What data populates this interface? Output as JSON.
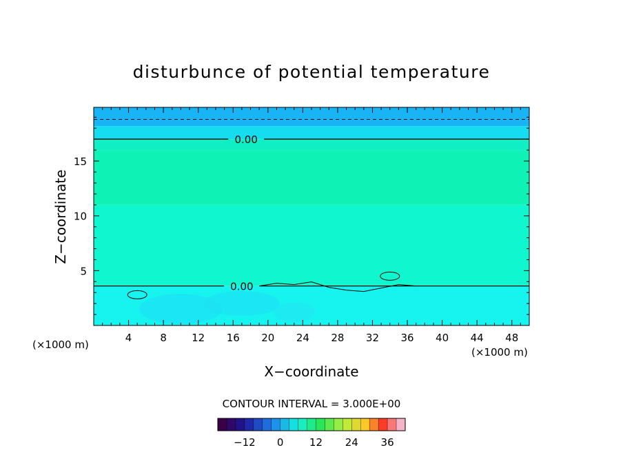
{
  "chart_data": {
    "type": "heatmap",
    "title": "disturbunce of potential temperature",
    "xlabel": "X−coordinate",
    "ylabel": "Z−coordinate",
    "x_unit_left": "(×1000 m)",
    "x_unit_right": "(×1000 m)",
    "xlim": [
      0,
      50
    ],
    "ylim": [
      0,
      19.9
    ],
    "x_ticks": [
      4,
      8,
      12,
      16,
      20,
      24,
      28,
      32,
      36,
      40,
      44,
      48
    ],
    "x_tick_labels": [
      "4",
      "8",
      "12",
      "16",
      "20",
      "24",
      "28",
      "32",
      "36",
      "40",
      "44",
      "48"
    ],
    "y_ticks": [
      5,
      10,
      15
    ],
    "y_tick_labels": [
      "5",
      "10",
      "15"
    ],
    "layers": [
      {
        "z": [
          0,
          3.6
        ],
        "color": "#17f4f0"
      },
      {
        "z": [
          3.6,
          11.0
        ],
        "color": "#10f7d0"
      },
      {
        "z": [
          11.0,
          16.0
        ],
        "color": "#0ef2b5"
      },
      {
        "z": [
          16.0,
          17.0
        ],
        "color": "#10eec4"
      },
      {
        "z": [
          17.0,
          18.2
        ],
        "color": "#16dcf0"
      },
      {
        "z": [
          18.2,
          19.9
        ],
        "color": "#19b4f5"
      }
    ],
    "contours": [
      {
        "level": "0.00",
        "z": 17.0,
        "label_x": 17.5
      },
      {
        "level": "0.00",
        "z": 3.6,
        "label_x": 17.0
      }
    ],
    "dashed_line_z": 18.8,
    "contour_interval_text": "CONTOUR INTERVAL = 3.000E+00",
    "colorbar": {
      "min": -21,
      "max": 42,
      "step": 3,
      "tick_values": [
        -12,
        0,
        12,
        24,
        36
      ],
      "tick_labels": [
        "−12",
        "0",
        "12",
        "24",
        "36"
      ]
    }
  }
}
